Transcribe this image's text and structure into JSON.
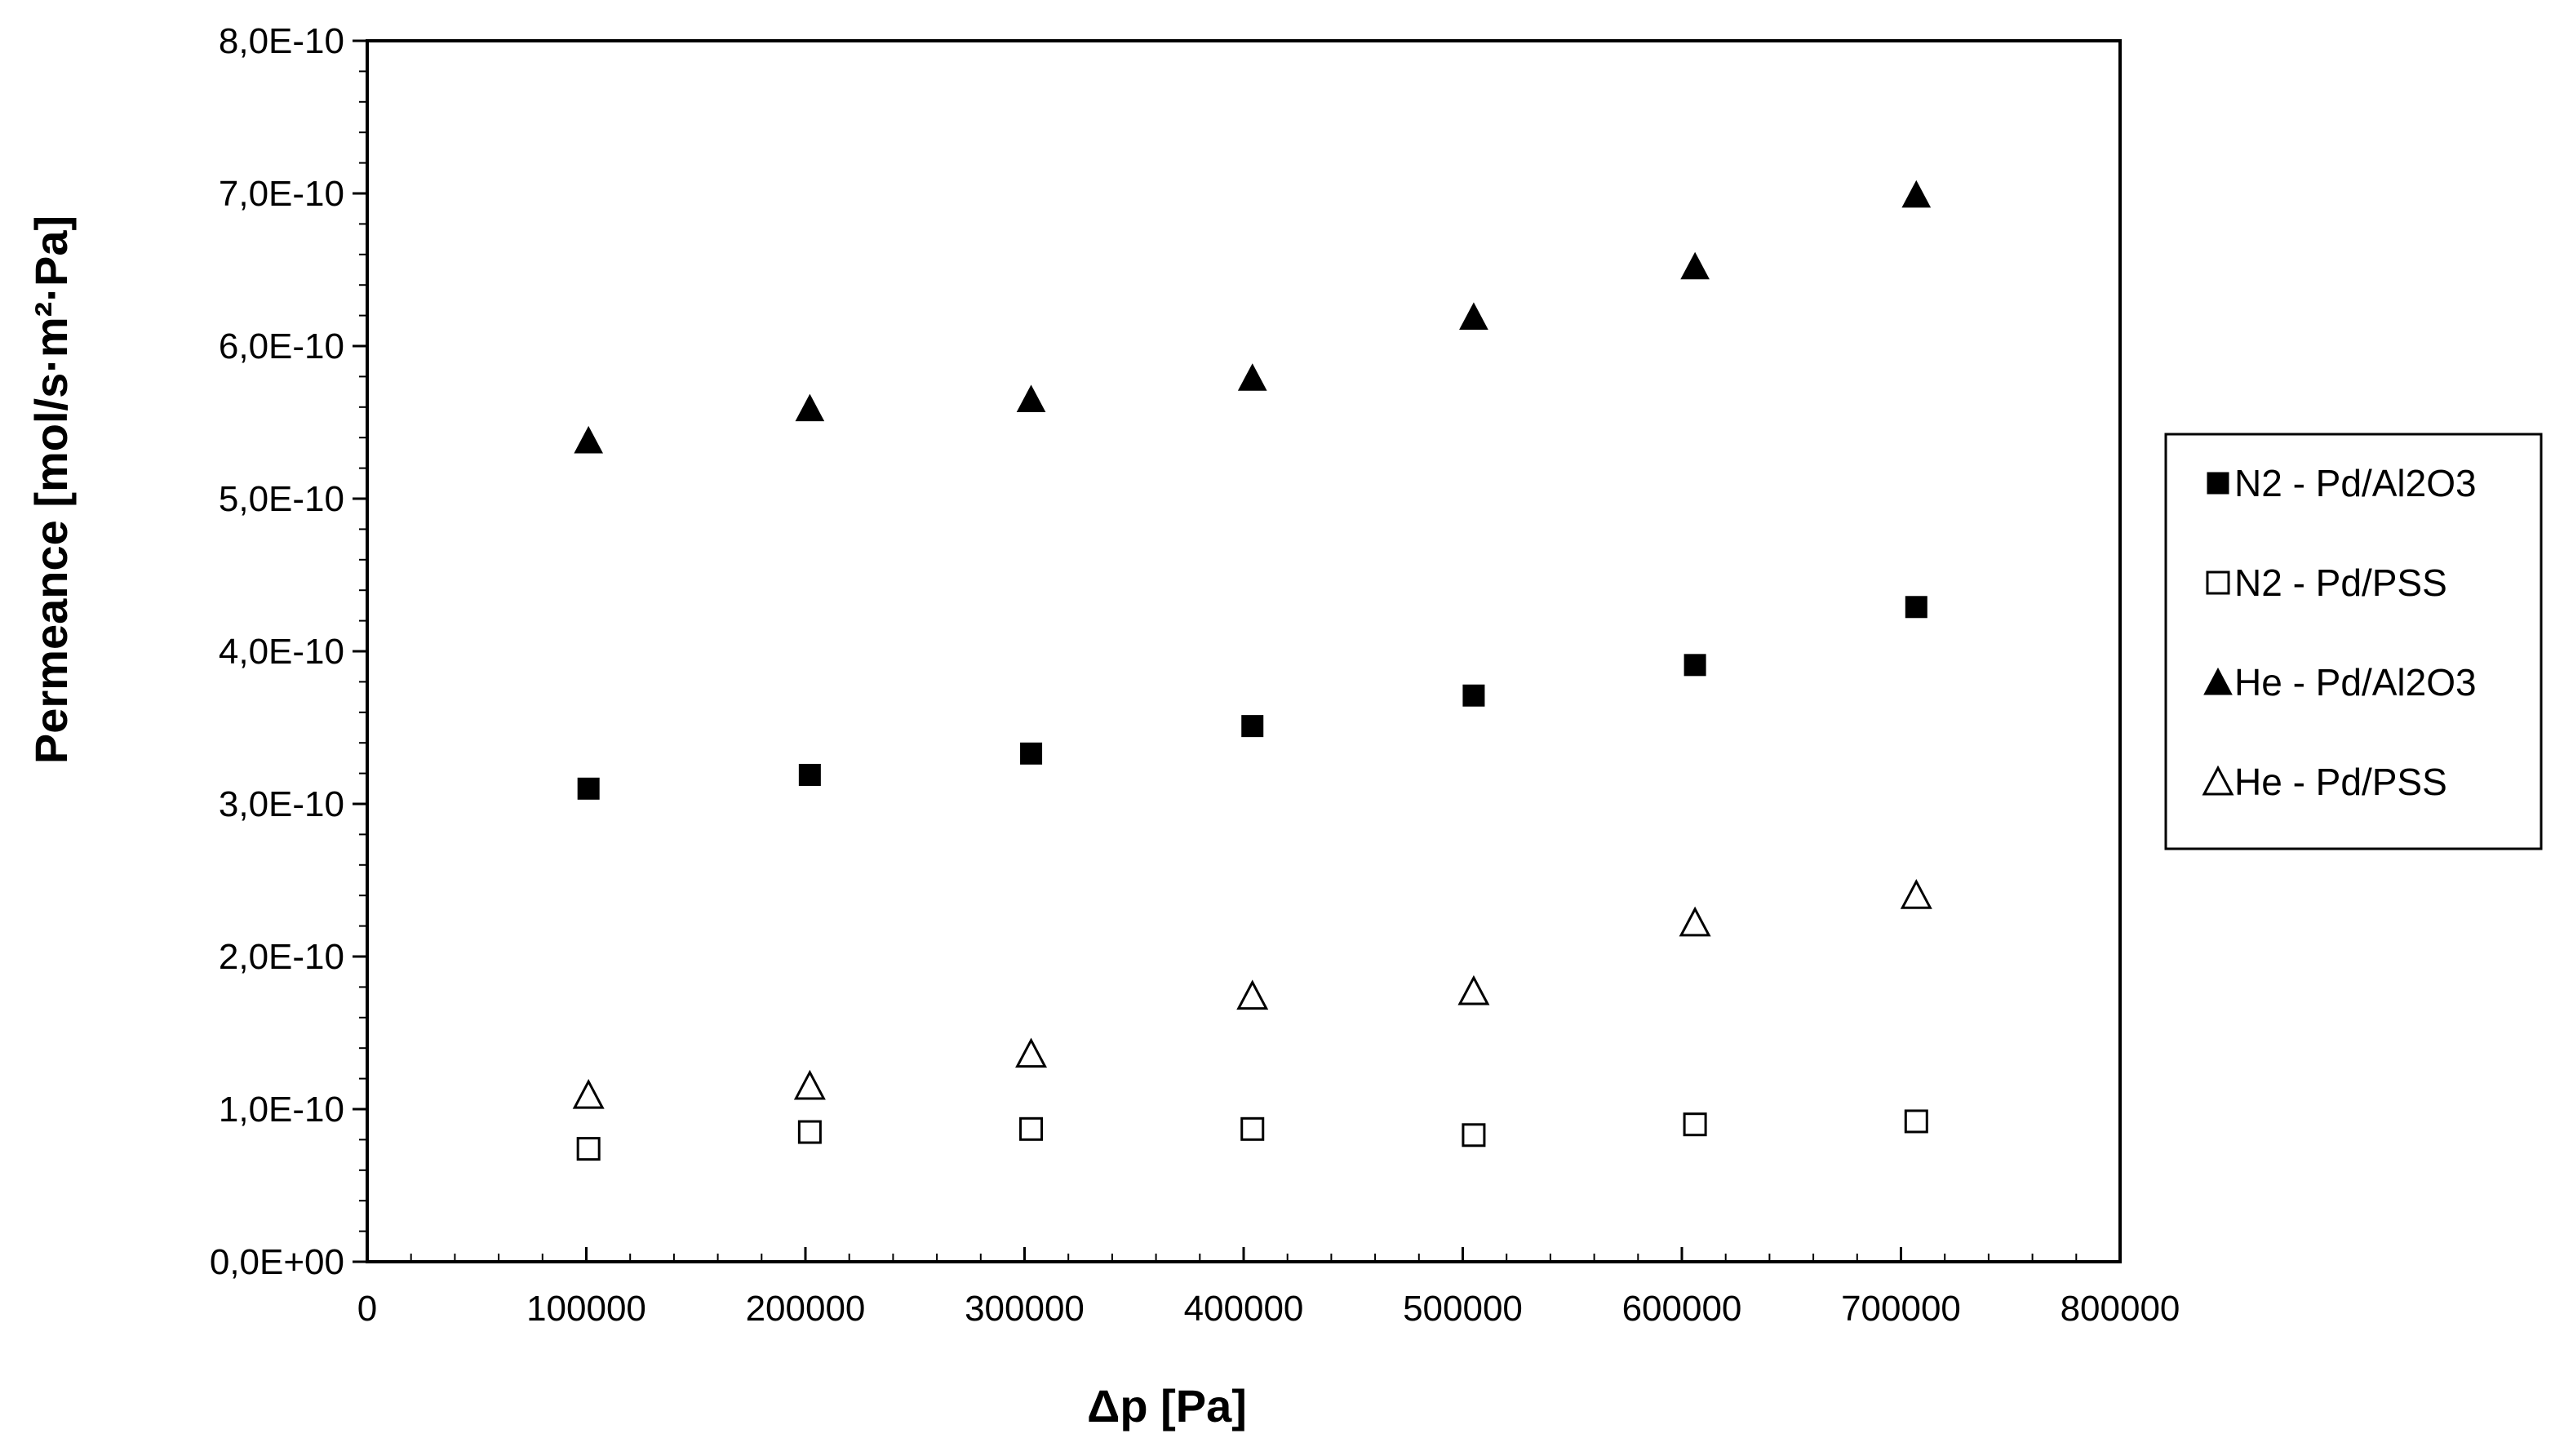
{
  "chart_data": {
    "type": "scatter",
    "title": "",
    "xlabel": "Δp [Pa]",
    "ylabel": "Permeance [mol/s·m²·Pa]",
    "xlim": [
      0,
      800000
    ],
    "ylim": [
      0,
      8e-10
    ],
    "x_ticks": [
      {
        "value": 0,
        "label": "0"
      },
      {
        "value": 100000,
        "label": "100000"
      },
      {
        "value": 200000,
        "label": "200000"
      },
      {
        "value": 300000,
        "label": "300000"
      },
      {
        "value": 400000,
        "label": "400000"
      },
      {
        "value": 500000,
        "label": "500000"
      },
      {
        "value": 600000,
        "label": "600000"
      },
      {
        "value": 700000,
        "label": "700000"
      },
      {
        "value": 800000,
        "label": "800000"
      }
    ],
    "y_ticks": [
      {
        "value": 0,
        "label": "0,0E+00"
      },
      {
        "value": 1e-10,
        "label": "1,0E-10"
      },
      {
        "value": 2e-10,
        "label": "2,0E-10"
      },
      {
        "value": 3e-10,
        "label": "3,0E-10"
      },
      {
        "value": 4e-10,
        "label": "4,0E-10"
      },
      {
        "value": 5e-10,
        "label": "5,0E-10"
      },
      {
        "value": 6e-10,
        "label": "6,0E-10"
      },
      {
        "value": 7e-10,
        "label": "7,0E-10"
      },
      {
        "value": 8e-10,
        "label": "8,0E-10"
      }
    ],
    "grid": false,
    "legend_position": "right",
    "series": [
      {
        "name": "N2 - Pd/Al2O3",
        "marker": "square-filled",
        "x": [
          101000,
          202000,
          303000,
          404000,
          505000,
          606000,
          707000
        ],
        "y": [
          3.1e-10,
          3.19e-10,
          3.33e-10,
          3.51e-10,
          3.71e-10,
          3.91e-10,
          4.29e-10
        ]
      },
      {
        "name": "N2 - Pd/PSS",
        "marker": "square-open",
        "x": [
          101000,
          202000,
          303000,
          404000,
          505000,
          606000,
          707000
        ],
        "y": [
          7.4e-11,
          8.5e-11,
          8.7e-11,
          8.7e-11,
          8.3e-11,
          9e-11,
          9.2e-11
        ]
      },
      {
        "name": "He - Pd/Al2O3",
        "marker": "triangle-filled",
        "x": [
          101000,
          202000,
          303000,
          404000,
          505000,
          606000,
          707000
        ],
        "y": [
          5.38e-10,
          5.59e-10,
          5.65e-10,
          5.79e-10,
          6.19e-10,
          6.52e-10,
          6.99e-10
        ]
      },
      {
        "name": "He - Pd/PSS",
        "marker": "triangle-open",
        "x": [
          101000,
          202000,
          303000,
          404000,
          505000,
          606000,
          707000
        ],
        "y": [
          1.09e-10,
          1.15e-10,
          1.36e-10,
          1.74e-10,
          1.77e-10,
          2.22e-10,
          2.4e-10
        ]
      }
    ]
  }
}
